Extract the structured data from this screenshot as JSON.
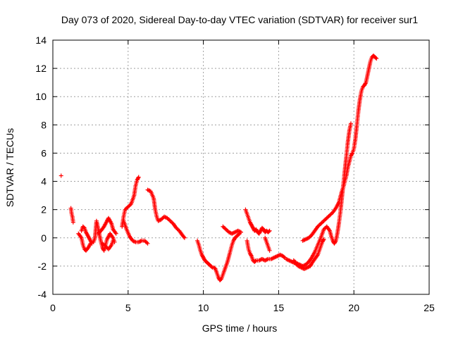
{
  "chart_data": {
    "type": "scatter",
    "title": "Day 073 of 2020, Sidereal Day-to-day VTEC variation (SDTVAR) for receiver sur1",
    "xlabel": "GPS time / hours",
    "ylabel": "SDTVAR / TECUs",
    "xlim": [
      0,
      25
    ],
    "ylim": [
      -4,
      14
    ],
    "xticks": [
      0,
      5,
      10,
      15,
      20,
      25
    ],
    "yticks": [
      -4,
      -2,
      0,
      2,
      4,
      6,
      8,
      10,
      12,
      14
    ],
    "grid": true,
    "marker": "+",
    "color": "#ff0000",
    "series": [
      {
        "name": "sur1",
        "segments": [
          [
            [
              0.55,
              4.4
            ]
          ],
          [
            [
              1.2,
              2.1
            ],
            [
              1.25,
              1.7
            ],
            [
              1.3,
              1.5
            ],
            [
              1.35,
              1.1
            ]
          ],
          [
            [
              1.7,
              0.3
            ],
            [
              1.9,
              0.0
            ],
            [
              2.0,
              -0.5
            ],
            [
              2.1,
              -0.8
            ],
            [
              2.2,
              -0.9
            ],
            [
              2.35,
              -0.7
            ],
            [
              2.5,
              -0.4
            ]
          ],
          [
            [
              1.9,
              0.5
            ],
            [
              2.0,
              0.8
            ],
            [
              2.1,
              0.7
            ],
            [
              2.2,
              0.4
            ],
            [
              2.35,
              0.1
            ],
            [
              2.5,
              -0.2
            ],
            [
              2.6,
              -0.4
            ]
          ],
          [
            [
              2.7,
              -0.3
            ],
            [
              2.8,
              0.0
            ],
            [
              2.85,
              0.6
            ],
            [
              2.9,
              1.2
            ],
            [
              3.0,
              0.7
            ],
            [
              3.1,
              0.2
            ],
            [
              3.2,
              -0.3
            ],
            [
              3.3,
              -0.7
            ],
            [
              3.4,
              -0.9
            ],
            [
              3.5,
              -0.5
            ],
            [
              3.6,
              -0.1
            ],
            [
              3.8,
              0.3
            ],
            [
              4.0,
              0.0
            ],
            [
              4.1,
              -0.3
            ]
          ],
          [
            [
              3.0,
              0.3
            ],
            [
              3.2,
              0.5
            ],
            [
              3.4,
              0.8
            ],
            [
              3.6,
              1.2
            ],
            [
              3.7,
              1.4
            ],
            [
              3.9,
              1.0
            ],
            [
              4.0,
              0.6
            ],
            [
              4.2,
              0.3
            ]
          ],
          [
            [
              3.3,
              -0.4
            ],
            [
              3.5,
              -0.6
            ],
            [
              3.7,
              -0.8
            ],
            [
              3.9,
              -0.5
            ],
            [
              4.0,
              -0.2
            ]
          ],
          [
            [
              4.6,
              0.8
            ],
            [
              4.7,
              1.5
            ],
            [
              4.8,
              2.0
            ],
            [
              5.0,
              2.2
            ],
            [
              5.2,
              2.4
            ],
            [
              5.4,
              3.0
            ],
            [
              5.5,
              3.7
            ],
            [
              5.6,
              4.1
            ],
            [
              5.7,
              4.3
            ]
          ],
          [
            [
              4.7,
              1.2
            ],
            [
              4.9,
              0.6
            ],
            [
              5.1,
              0.1
            ],
            [
              5.3,
              -0.2
            ],
            [
              5.5,
              -0.3
            ],
            [
              5.7,
              -0.3
            ],
            [
              5.9,
              -0.2
            ],
            [
              6.1,
              -0.2
            ],
            [
              6.3,
              -0.4
            ]
          ],
          [
            [
              6.3,
              3.4
            ],
            [
              6.5,
              3.3
            ],
            [
              6.7,
              2.8
            ],
            [
              6.8,
              2.0
            ],
            [
              6.9,
              1.5
            ],
            [
              7.0,
              1.2
            ],
            [
              7.2,
              1.3
            ],
            [
              7.4,
              1.5
            ],
            [
              7.6,
              1.4
            ],
            [
              7.8,
              1.2
            ],
            [
              8.0,
              1.0
            ],
            [
              8.2,
              0.7
            ],
            [
              8.4,
              0.5
            ],
            [
              8.6,
              0.2
            ],
            [
              8.75,
              0.0
            ]
          ],
          [
            [
              9.6,
              -0.2
            ],
            [
              9.7,
              -0.5
            ],
            [
              9.8,
              -0.9
            ],
            [
              9.9,
              -1.2
            ],
            [
              10.0,
              -1.4
            ],
            [
              10.1,
              -1.6
            ],
            [
              10.2,
              -1.7
            ],
            [
              10.3,
              -1.8
            ],
            [
              10.4,
              -1.9
            ],
            [
              10.5,
              -2.0
            ],
            [
              10.6,
              -2.1
            ],
            [
              10.7,
              -2.1
            ],
            [
              10.8,
              -2.2
            ],
            [
              10.9,
              -2.5
            ],
            [
              11.0,
              -2.8
            ],
            [
              11.1,
              -3.0
            ],
            [
              11.2,
              -2.9
            ],
            [
              11.3,
              -2.6
            ],
            [
              11.4,
              -2.3
            ],
            [
              11.5,
              -2.0
            ],
            [
              11.6,
              -1.7
            ],
            [
              11.7,
              -1.3
            ],
            [
              11.8,
              -0.9
            ],
            [
              11.9,
              -0.5
            ],
            [
              12.0,
              -0.2
            ],
            [
              12.1,
              0.0
            ],
            [
              12.2,
              0.1
            ],
            [
              12.3,
              0.2
            ],
            [
              12.4,
              0.3
            ]
          ],
          [
            [
              11.3,
              0.8
            ],
            [
              11.5,
              0.6
            ],
            [
              11.7,
              0.4
            ],
            [
              11.9,
              0.3
            ],
            [
              12.1,
              0.4
            ],
            [
              12.3,
              0.5
            ],
            [
              12.5,
              0.4
            ]
          ],
          [
            [
              12.8,
              2.0
            ],
            [
              12.9,
              1.7
            ],
            [
              13.0,
              1.4
            ],
            [
              13.1,
              1.1
            ],
            [
              13.2,
              0.9
            ],
            [
              13.3,
              0.7
            ],
            [
              13.4,
              0.5
            ],
            [
              13.5,
              0.6
            ],
            [
              13.6,
              0.4
            ],
            [
              13.7,
              0.3
            ],
            [
              13.8,
              0.5
            ],
            [
              13.9,
              0.7
            ],
            [
              14.0,
              0.6
            ],
            [
              14.1,
              0.4
            ],
            [
              14.2,
              0.5
            ],
            [
              14.3,
              0.4
            ],
            [
              14.4,
              0.5
            ]
          ],
          [
            [
              12.9,
              -0.2
            ],
            [
              13.0,
              -0.8
            ],
            [
              13.1,
              -1.1
            ],
            [
              13.2,
              -1.3
            ],
            [
              13.3,
              -1.6
            ],
            [
              13.4,
              -1.7
            ],
            [
              13.5,
              -1.6
            ],
            [
              13.7,
              -1.6
            ],
            [
              13.9,
              -1.5
            ],
            [
              14.1,
              -1.6
            ],
            [
              14.3,
              -1.5
            ],
            [
              14.5,
              -1.5
            ],
            [
              14.7,
              -1.4
            ],
            [
              14.9,
              -1.3
            ],
            [
              15.1,
              -1.2
            ],
            [
              15.3,
              -1.3
            ],
            [
              15.4,
              -1.4
            ]
          ],
          [
            [
              14.1,
              0.0
            ],
            [
              14.2,
              -0.3
            ],
            [
              14.3,
              -0.6
            ],
            [
              14.4,
              -0.9
            ]
          ],
          [
            [
              15.5,
              -1.5
            ],
            [
              15.7,
              -1.6
            ],
            [
              15.9,
              -1.7
            ],
            [
              16.1,
              -1.8
            ],
            [
              16.3,
              -2.0
            ],
            [
              16.5,
              -2.1
            ],
            [
              16.7,
              -2.2
            ],
            [
              16.9,
              -2.1
            ],
            [
              17.1,
              -2.0
            ],
            [
              17.2,
              -1.8
            ],
            [
              17.4,
              -1.5
            ],
            [
              17.6,
              -1.2
            ],
            [
              17.7,
              -0.9
            ],
            [
              17.8,
              -0.6
            ],
            [
              17.9,
              -0.3
            ],
            [
              18.0,
              -0.1
            ]
          ],
          [
            [
              16.0,
              -1.6
            ],
            [
              16.2,
              -1.8
            ],
            [
              16.4,
              -1.9
            ],
            [
              16.6,
              -2.0
            ],
            [
              16.8,
              -1.9
            ],
            [
              17.0,
              -1.7
            ],
            [
              17.2,
              -1.4
            ],
            [
              17.4,
              -1.0
            ],
            [
              17.6,
              -0.5
            ],
            [
              17.8,
              0.0
            ],
            [
              17.9,
              0.3
            ],
            [
              18.0,
              0.6
            ],
            [
              18.2,
              0.8
            ],
            [
              18.4,
              0.5
            ],
            [
              18.5,
              0.1
            ],
            [
              18.6,
              -0.2
            ],
            [
              18.7,
              -0.4
            ],
            [
              18.8,
              -0.2
            ],
            [
              18.9,
              0.3
            ],
            [
              19.0,
              1.0
            ],
            [
              19.1,
              1.8
            ],
            [
              19.2,
              2.8
            ],
            [
              19.3,
              3.8
            ],
            [
              19.4,
              4.8
            ],
            [
              19.5,
              5.8
            ],
            [
              19.6,
              6.8
            ],
            [
              19.7,
              7.6
            ],
            [
              19.8,
              8.1
            ]
          ],
          [
            [
              16.6,
              -0.2
            ],
            [
              16.8,
              -0.1
            ],
            [
              17.0,
              0.0
            ],
            [
              17.2,
              0.2
            ],
            [
              17.4,
              0.5
            ],
            [
              17.6,
              0.8
            ],
            [
              17.8,
              1.0
            ],
            [
              18.0,
              1.2
            ],
            [
              18.2,
              1.4
            ],
            [
              18.4,
              1.6
            ],
            [
              18.6,
              1.8
            ],
            [
              18.8,
              2.1
            ],
            [
              19.0,
              2.5
            ],
            [
              19.1,
              2.9
            ],
            [
              19.2,
              3.3
            ],
            [
              19.3,
              3.6
            ],
            [
              19.4,
              4.0
            ],
            [
              19.5,
              4.4
            ],
            [
              19.6,
              5.0
            ],
            [
              19.7,
              5.4
            ],
            [
              19.8,
              5.8
            ],
            [
              19.9,
              6.0
            ],
            [
              20.0,
              6.3
            ],
            [
              20.1,
              7.0
            ],
            [
              20.2,
              8.0
            ],
            [
              20.3,
              9.0
            ],
            [
              20.4,
              9.8
            ],
            [
              20.5,
              10.4
            ],
            [
              20.6,
              10.7
            ],
            [
              20.7,
              10.8
            ],
            [
              20.8,
              11.0
            ],
            [
              20.9,
              11.5
            ],
            [
              21.0,
              12.0
            ],
            [
              21.1,
              12.5
            ],
            [
              21.2,
              12.8
            ],
            [
              21.3,
              12.9
            ],
            [
              21.4,
              12.8
            ],
            [
              21.5,
              12.7
            ]
          ]
        ]
      }
    ]
  }
}
